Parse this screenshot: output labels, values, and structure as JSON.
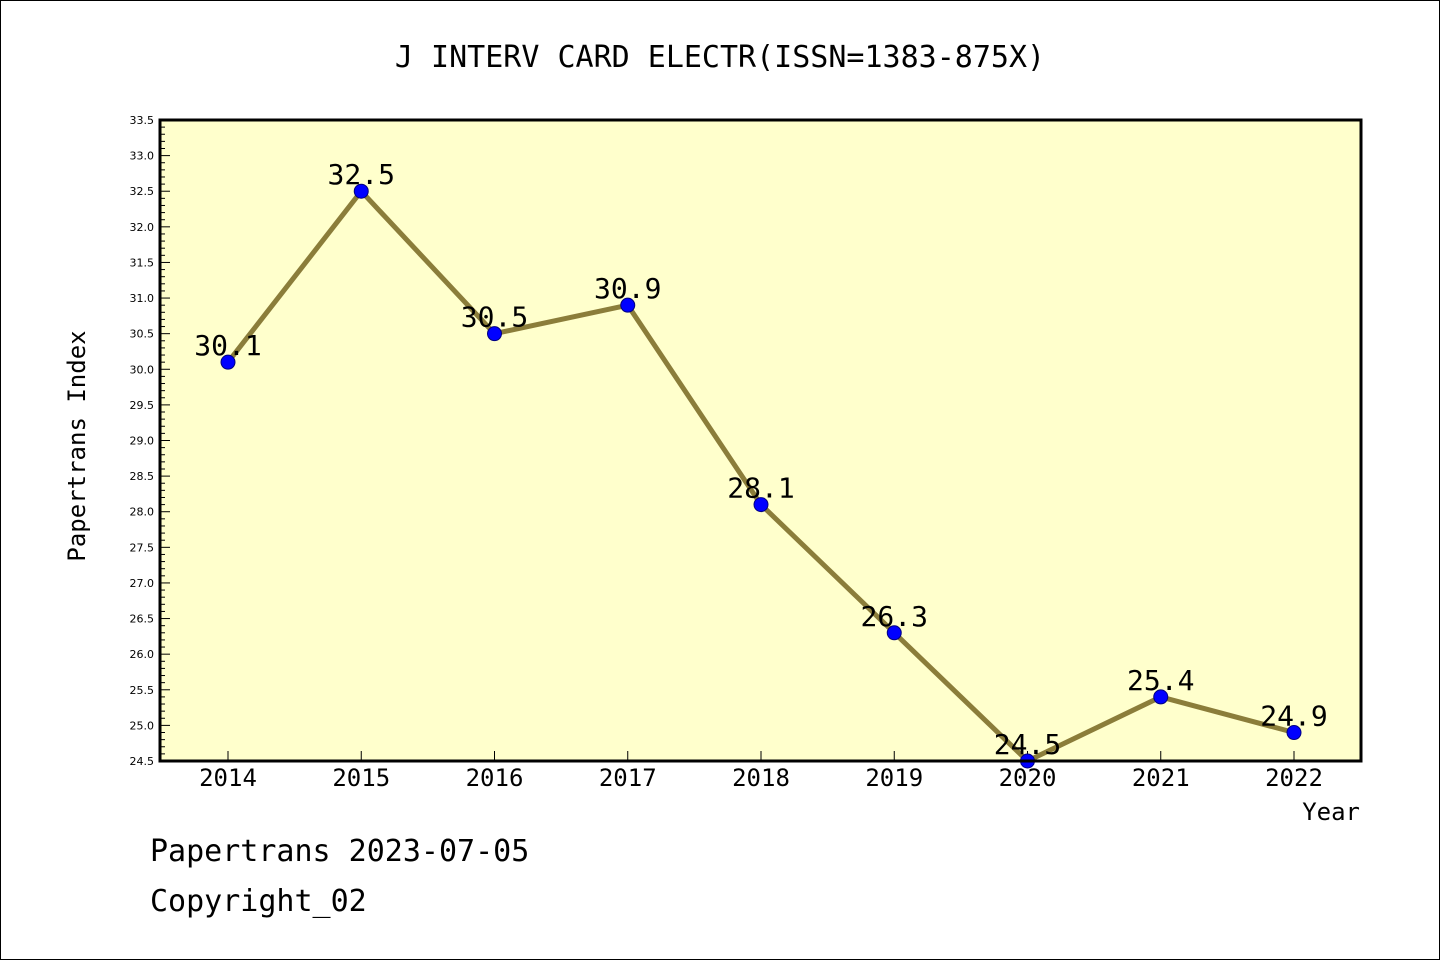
{
  "chart_data": {
    "type": "line",
    "title": "J INTERV CARD ELECTR(ISSN=1383-875X)",
    "xlabel": "Year",
    "ylabel": "Papertrans Index",
    "categories": [
      "2014",
      "2015",
      "2016",
      "2017",
      "2018",
      "2019",
      "2020",
      "2021",
      "2022"
    ],
    "series": [
      {
        "values": [
          30.1,
          32.5,
          30.5,
          30.9,
          28.1,
          26.3,
          24.5,
          25.4,
          24.9
        ]
      }
    ],
    "data_labels": [
      "30.1",
      "32.5",
      "30.5",
      "30.9",
      "28.1",
      "26.3",
      "24.5",
      "25.4",
      "24.9"
    ],
    "ylim": [
      24.5,
      33.5
    ],
    "ytick_labels": [
      "24.5",
      "25.0",
      "25.5",
      "26.0",
      "26.5",
      "27.0",
      "27.5",
      "28.0",
      "28.5",
      "29.0",
      "29.5",
      "30.0",
      "30.5",
      "31.0",
      "31.5",
      "32.0",
      "32.5",
      "33.0",
      "33.5"
    ],
    "grid": false,
    "colors": {
      "plot_background": "#ffffcc",
      "line": "#8b7d3a",
      "marker_fill": "#0000ff",
      "marker_stroke": "#000080"
    }
  },
  "footer": {
    "date_text": "Papertrans 2023-07-05",
    "copyright_text": "Copyright_02"
  }
}
